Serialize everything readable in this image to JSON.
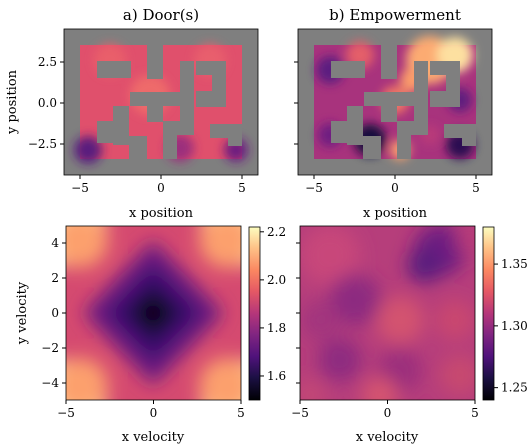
{
  "figure": {
    "colormap": "magma",
    "maze_wall_color": "#7f7f7f"
  },
  "chart_data": [
    {
      "type": "heatmap",
      "panel": "top-left",
      "title": "a) Door(s)",
      "xlabel": "x position",
      "ylabel": "y position",
      "xlim": [
        -6,
        6
      ],
      "ylim": [
        -4.5,
        4.5
      ],
      "xticks": [
        -5,
        0,
        5
      ],
      "yticks": [
        2.5,
        0.0,
        -2.5
      ],
      "ytick_labels": [
        "2.5",
        "0.0",
        "−2.5"
      ],
      "xtick_labels": [
        "−5",
        "0",
        "5"
      ],
      "colorbar": false,
      "description_of_values": "uniform mid-high values inside maze corridors, darker near the bottom-left and bottom-right corners"
    },
    {
      "type": "heatmap",
      "panel": "top-right",
      "title": "b) Empowerment",
      "xlabel": "x position",
      "ylabel": "",
      "xlim": [
        -6,
        6
      ],
      "ylim": [
        -4.5,
        4.5
      ],
      "xticks": [
        -5,
        0,
        5
      ],
      "xtick_labels": [
        "−5",
        "0",
        "5"
      ],
      "colorbar": false,
      "description_of_values": "bright region in the upper center/right corridor, darker pockets near the bottom-left and right side"
    },
    {
      "type": "heatmap",
      "panel": "bottom-left",
      "title": "",
      "xlabel": "x velocity",
      "ylabel": "y velocity",
      "xlim": [
        -5,
        5
      ],
      "ylim": [
        -5,
        5
      ],
      "xticks": [
        -5,
        0,
        5
      ],
      "yticks": [
        4,
        2,
        0,
        -2,
        -4
      ],
      "xtick_labels": [
        "−5",
        "0",
        "5"
      ],
      "ytick_labels": [
        "4",
        "2",
        "0",
        "−2",
        "−4"
      ],
      "colorbar": true,
      "colorbar_range": [
        1.5,
        2.22
      ],
      "colorbar_ticks": [
        2.2,
        2.0,
        1.8,
        1.6
      ],
      "colorbar_tick_labels": [
        "2.2",
        "2.0",
        "1.8",
        "1.6"
      ],
      "description_of_values": "minimum at origin, increasing with |vx| + |vy|, highest at the four corners"
    },
    {
      "type": "heatmap",
      "panel": "bottom-right",
      "title": "",
      "xlabel": "x velocity",
      "ylabel": "",
      "xlim": [
        -5,
        5
      ],
      "ylim": [
        -5,
        5
      ],
      "xticks": [
        -5,
        0,
        5
      ],
      "xtick_labels": [
        "−5",
        "0",
        "5"
      ],
      "colorbar": true,
      "colorbar_range": [
        1.24,
        1.38
      ],
      "colorbar_ticks": [
        1.35,
        1.3,
        1.25
      ],
      "colorbar_tick_labels": [
        "1.35",
        "1.30",
        "1.25"
      ],
      "description_of_values": "noisy field around 1.30-1.34, darker patch near (2.5, 3.5) and bands near vy = 0"
    }
  ]
}
